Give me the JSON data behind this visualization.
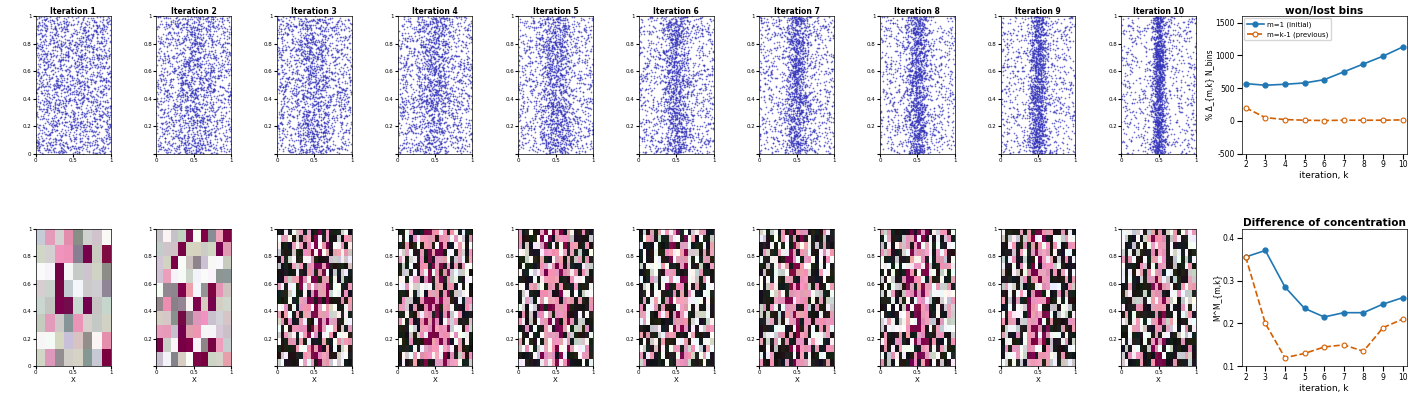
{
  "n_iterations": 10,
  "top_title_prefix": "Iteration ",
  "won_lost_title": "won/lost bins",
  "won_lost_xlabel": "iteration, k",
  "won_lost_ylabel": "% Δ_{m,k} N_bins",
  "won_lost_ylim": [
    -500,
    1600
  ],
  "won_lost_yticks": [
    -500,
    0,
    500,
    1000,
    1500
  ],
  "won_lost_x": [
    2,
    3,
    4,
    5,
    6,
    7,
    8,
    9,
    10
  ],
  "won_lost_initial": [
    570,
    545,
    560,
    580,
    630,
    750,
    870,
    990,
    1130
  ],
  "won_lost_previous": [
    200,
    50,
    20,
    10,
    5,
    10,
    10,
    10,
    15
  ],
  "won_lost_legend_initial": "m=1 (initial)",
  "won_lost_legend_previous": "m=k-1 (previous)",
  "conc_title": "Difference of concentration",
  "conc_xlabel": "iteration, k",
  "conc_ylabel": "M^M_{m,k}",
  "conc_ylim": [
    0.1,
    0.42
  ],
  "conc_yticks": [
    0.1,
    0.2,
    0.3,
    0.4
  ],
  "conc_x": [
    2,
    3,
    4,
    5,
    6,
    7,
    8,
    9,
    10
  ],
  "conc_initial": [
    0.355,
    0.37,
    0.285,
    0.235,
    0.215,
    0.225,
    0.225,
    0.245,
    0.26
  ],
  "conc_previous": [
    0.355,
    0.2,
    0.12,
    0.13,
    0.145,
    0.15,
    0.135,
    0.19,
    0.21
  ],
  "blue_color": "#1f77b4",
  "orange_color": "#d45f00",
  "scatter_dot_color": "#3333bb",
  "scatter_dot_size": 1.5,
  "background_color": "#FFFFFF",
  "heatmap_xlabel": "X"
}
